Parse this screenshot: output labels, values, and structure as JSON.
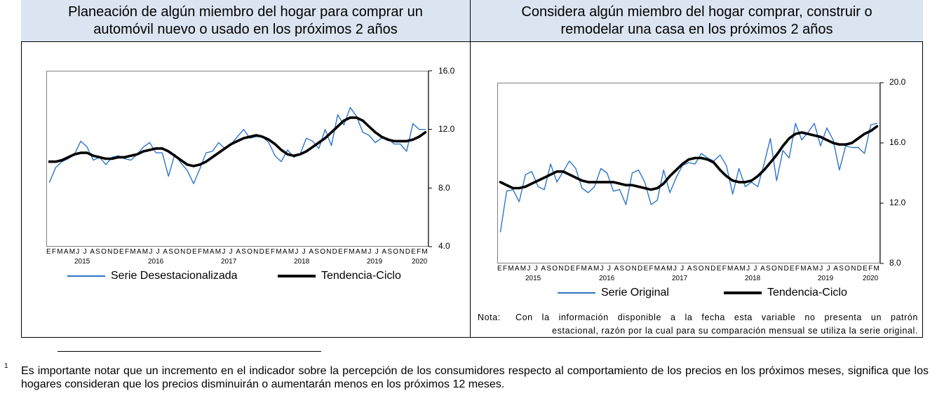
{
  "colors": {
    "header_bg": "#dbe5f1",
    "series_blue": "#2e75c9",
    "trend_black": "#000000"
  },
  "chart_data": [
    {
      "type": "line",
      "title": "Planeación de algún miembro del hogar para comprar un automóvil nuevo o usado en los próximos 2 años",
      "month_labels": "EFMAMJ J ASONDEFMAMJ J ASONDEFMAMJ J ASONDEFMAMJ J ASONDEFMAMJ J ASONDEFM",
      "year_labels": [
        "2015",
        "2016",
        "2017",
        "2018",
        "2019",
        "2020"
      ],
      "ylim": [
        4.0,
        16.0
      ],
      "yticks": [
        "4.0",
        "8.0",
        "12.0",
        "16.0"
      ],
      "y_axis_side": "right",
      "legend_position": "bottom",
      "series": [
        {
          "name": "Serie Desestacionalizada",
          "color": "#2e75c9",
          "values": [
            8.4,
            9.4,
            9.8,
            10.0,
            10.3,
            11.2,
            10.8,
            9.9,
            10.1,
            9.6,
            10.1,
            10.2,
            10.0,
            9.9,
            10.3,
            10.8,
            11.1,
            10.4,
            10.4,
            8.8,
            10.3,
            9.7,
            9.2,
            8.3,
            9.3,
            10.4,
            10.5,
            11.1,
            10.7,
            11.0,
            11.5,
            12.0,
            11.4,
            11.5,
            11.5,
            11.1,
            10.2,
            9.8,
            10.6,
            10.1,
            10.3,
            11.4,
            11.2,
            10.7,
            12.0,
            10.9,
            13.0,
            12.3,
            13.5,
            12.9,
            11.8,
            11.6,
            11.1,
            11.4,
            11.4,
            11.0,
            11.0,
            10.5,
            12.4,
            12.0,
            12.0
          ],
          "label": "Serie Desestacionalizada"
        },
        {
          "name": "Tendencia-Ciclo",
          "color": "#000000",
          "values": [
            9.8,
            9.8,
            9.9,
            10.1,
            10.3,
            10.4,
            10.4,
            10.2,
            10.1,
            10.0,
            10.0,
            10.1,
            10.1,
            10.2,
            10.3,
            10.5,
            10.6,
            10.7,
            10.7,
            10.5,
            10.2,
            9.9,
            9.6,
            9.5,
            9.6,
            9.8,
            10.1,
            10.4,
            10.7,
            11.0,
            11.2,
            11.4,
            11.5,
            11.6,
            11.5,
            11.3,
            11.0,
            10.6,
            10.3,
            10.2,
            10.3,
            10.5,
            10.8,
            11.1,
            11.4,
            11.8,
            12.2,
            12.6,
            12.8,
            12.8,
            12.6,
            12.2,
            11.8,
            11.5,
            11.3,
            11.2,
            11.2,
            11.2,
            11.3,
            11.5,
            11.8
          ],
          "label": "Tendencia-Ciclo"
        }
      ]
    },
    {
      "type": "line",
      "title": "Considera algún miembro del hogar comprar, construir o remodelar una casa en los próximos 2 años",
      "month_labels": "EFMAMJ J ASONDEFMAMJ J ASONDEFMAMJ J ASONDEFMAMJ J ASONDEFMAMJ J ASONDEFM",
      "year_labels": [
        "2015",
        "2016",
        "2017",
        "2018",
        "2019",
        "2020"
      ],
      "ylim": [
        8.0,
        20.0
      ],
      "yticks": [
        "8.0",
        "12.0",
        "16.0",
        "20.0"
      ],
      "y_axis_side": "right",
      "legend_position": "bottom",
      "series": [
        {
          "name": "Serie Original",
          "color": "#2e75c9",
          "values": [
            10.1,
            12.8,
            12.9,
            12.1,
            13.9,
            14.1,
            13.1,
            12.9,
            14.6,
            13.4,
            14.1,
            14.8,
            14.3,
            13.0,
            12.7,
            13.1,
            14.3,
            14.0,
            12.8,
            12.9,
            11.9,
            14.0,
            14.2,
            13.4,
            11.9,
            12.2,
            14.2,
            12.7,
            13.7,
            14.5,
            14.7,
            14.6,
            15.3,
            15.0,
            14.8,
            15.2,
            14.5,
            12.6,
            14.3,
            13.1,
            13.4,
            13.1,
            14.6,
            16.3,
            13.5,
            15.5,
            15.0,
            17.3,
            16.2,
            16.7,
            17.3,
            15.8,
            17.0,
            16.2,
            14.2,
            15.8,
            15.7,
            15.7,
            15.3,
            17.2,
            17.3
          ],
          "label": "Serie Original"
        },
        {
          "name": "Tendencia-Ciclo",
          "color": "#000000",
          "values": [
            13.4,
            13.2,
            13.0,
            13.0,
            13.1,
            13.3,
            13.5,
            13.7,
            13.9,
            14.1,
            14.1,
            13.9,
            13.7,
            13.5,
            13.4,
            13.4,
            13.4,
            13.4,
            13.4,
            13.3,
            13.2,
            13.2,
            13.1,
            13.0,
            12.9,
            13.0,
            13.3,
            13.8,
            14.2,
            14.6,
            14.9,
            15.0,
            15.0,
            14.9,
            14.7,
            14.2,
            13.8,
            13.5,
            13.4,
            13.4,
            13.5,
            13.8,
            14.2,
            14.7,
            15.2,
            15.8,
            16.3,
            16.6,
            16.7,
            16.6,
            16.5,
            16.4,
            16.2,
            16.0,
            15.9,
            15.9,
            16.0,
            16.3,
            16.6,
            16.8,
            17.1
          ],
          "label": "Tendencia-Ciclo"
        }
      ],
      "note_label": "Nota:",
      "note_line1": "Con la información disponible a la fecha esta variable no presenta un patrón",
      "note_line2": "estacional, razón por la cual para su comparación mensual se utiliza la serie original."
    }
  ],
  "footnote": {
    "number": "1",
    "text": "Es importante notar que un incremento en el indicador sobre la percepción de los consumidores respecto al comportamiento de los precios en los próximos meses, significa que los hogares consideran que los precios disminuirán o aumentarán menos en los próximos 12 meses."
  }
}
